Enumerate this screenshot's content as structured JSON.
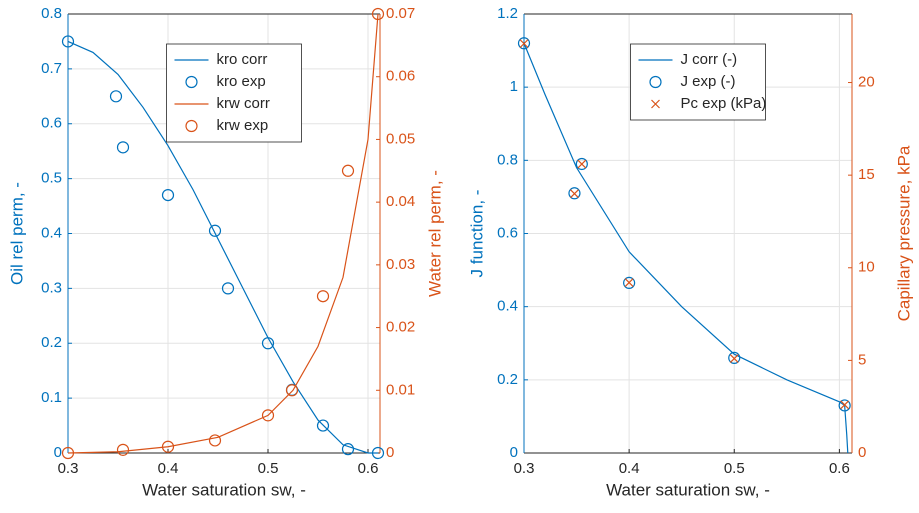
{
  "chart_data": [
    {
      "type": "line",
      "xlabel": "Water saturation sw, -",
      "ylabel": "Oil rel perm, -",
      "y2label": "Water rel perm, -",
      "xlim": [
        0.3,
        0.612
      ],
      "xticks": [
        0.3,
        0.4,
        0.5,
        0.6
      ],
      "ylim": [
        0,
        0.8
      ],
      "yticks": [
        0,
        0.1,
        0.2,
        0.3,
        0.4,
        0.5,
        0.6,
        0.7,
        0.8
      ],
      "y2lim": [
        0,
        0.07
      ],
      "y2ticks": [
        0,
        0.01,
        0.02,
        0.03,
        0.04,
        0.05,
        0.06,
        0.07
      ],
      "ycolor": "#0072BD",
      "y2color": "#D95319",
      "grid": true,
      "legend": "top-center",
      "series": [
        {
          "name": "kro corr",
          "color": "#0072BD",
          "marker": "line",
          "x": [
            0.3,
            0.325,
            0.35,
            0.375,
            0.4,
            0.425,
            0.45,
            0.475,
            0.5,
            0.525,
            0.55,
            0.575,
            0.6,
            0.61
          ],
          "values": [
            0.75,
            0.73,
            0.69,
            0.63,
            0.56,
            0.48,
            0.39,
            0.3,
            0.21,
            0.13,
            0.06,
            0.015,
            0,
            0
          ]
        },
        {
          "name": "kro exp",
          "color": "#0072BD",
          "marker": "o",
          "x": [
            0.3,
            0.348,
            0.355,
            0.4,
            0.447,
            0.46,
            0.5,
            0.524,
            0.555,
            0.58,
            0.61
          ],
          "values": [
            0.75,
            0.65,
            0.557,
            0.47,
            0.405,
            0.3,
            0.2,
            0.115,
            0.05,
            0.007,
            0
          ]
        },
        {
          "name": "krw corr",
          "color": "#D95319",
          "marker": "line",
          "axis": "y2",
          "x": [
            0.3,
            0.35,
            0.4,
            0.45,
            0.5,
            0.525,
            0.55,
            0.575,
            0.6,
            0.61
          ],
          "values": [
            0,
            0.0002,
            0.001,
            0.0025,
            0.006,
            0.01,
            0.017,
            0.028,
            0.05,
            0.07
          ]
        },
        {
          "name": "krw exp",
          "color": "#D95319",
          "marker": "o",
          "axis": "y2",
          "x": [
            0.3,
            0.355,
            0.4,
            0.447,
            0.5,
            0.524,
            0.555,
            0.58,
            0.61
          ],
          "values": [
            0,
            0.0005,
            0.001,
            0.002,
            0.006,
            0.01,
            0.025,
            0.045,
            0.07
          ]
        }
      ]
    },
    {
      "type": "line",
      "xlabel": "Water saturation sw, -",
      "ylabel": "J function, -",
      "y2label": "Capillary pressure, kPa",
      "xlim": [
        0.3,
        0.612
      ],
      "xticks": [
        0.3,
        0.4,
        0.5,
        0.6
      ],
      "ylim": [
        0,
        1.2
      ],
      "yticks": [
        0,
        0.2,
        0.4,
        0.6,
        0.8,
        1,
        1.2
      ],
      "y2lim": [
        0,
        23.7
      ],
      "y2ticks": [
        0,
        5,
        10,
        15,
        20
      ],
      "ycolor": "#0072BD",
      "y2color": "#D95319",
      "grid": true,
      "legend": "top-center",
      "series": [
        {
          "name": "J corr (-)",
          "color": "#0072BD",
          "marker": "line",
          "x": [
            0.3,
            0.32,
            0.35,
            0.4,
            0.45,
            0.5,
            0.55,
            0.6,
            0.605,
            0.607,
            0.608
          ],
          "values": [
            1.12,
            0.98,
            0.78,
            0.55,
            0.4,
            0.27,
            0.2,
            0.14,
            0.13,
            0.05,
            0
          ]
        },
        {
          "name": "J exp (-)",
          "color": "#0072BD",
          "marker": "o",
          "x": [
            0.3,
            0.348,
            0.355,
            0.4,
            0.5,
            0.605
          ],
          "values": [
            1.12,
            0.71,
            0.79,
            0.465,
            0.26,
            0.13
          ]
        },
        {
          "name": "Pc exp (kPa)",
          "color": "#D95319",
          "marker": "x",
          "axis": "y2",
          "x": [
            0.3,
            0.348,
            0.355,
            0.4,
            0.5,
            0.605
          ],
          "values": [
            22.1,
            14.0,
            15.6,
            9.2,
            5.1,
            2.6
          ]
        }
      ]
    }
  ]
}
